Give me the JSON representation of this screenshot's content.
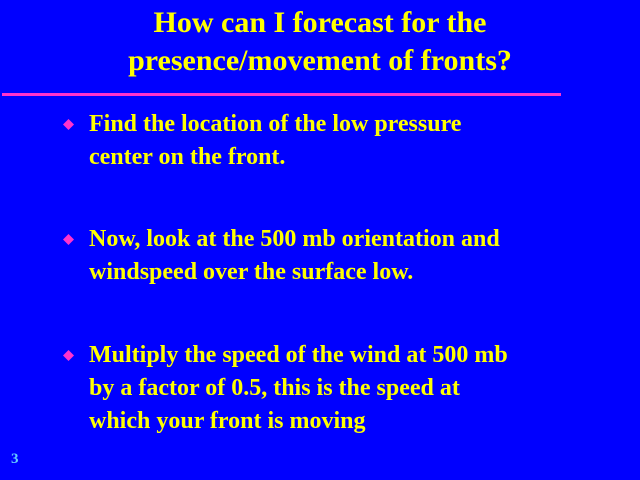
{
  "slide": {
    "title_lines": [
      "How can I forecast for the",
      "presence/movement of fronts?"
    ],
    "bullets": [
      {
        "lines": [
          "Find the location of the low pressure",
          "center on the front."
        ]
      },
      {
        "lines": [
          "Now, look at the 500 mb orientation and",
          "windspeed over the surface low."
        ]
      },
      {
        "lines": [
          "Multiply the speed of the wind at 500 mb",
          "by a factor of 0.5, this is the speed at",
          "which your front is moving"
        ]
      }
    ],
    "page_number": "3",
    "bullet_icon": "diamond-bullet-icon",
    "colors": {
      "background": "#0000ff",
      "text": "#ffff00",
      "rule": "#ff33cc",
      "bullet": "#ff33cc",
      "page_number": "#66ccff"
    }
  }
}
